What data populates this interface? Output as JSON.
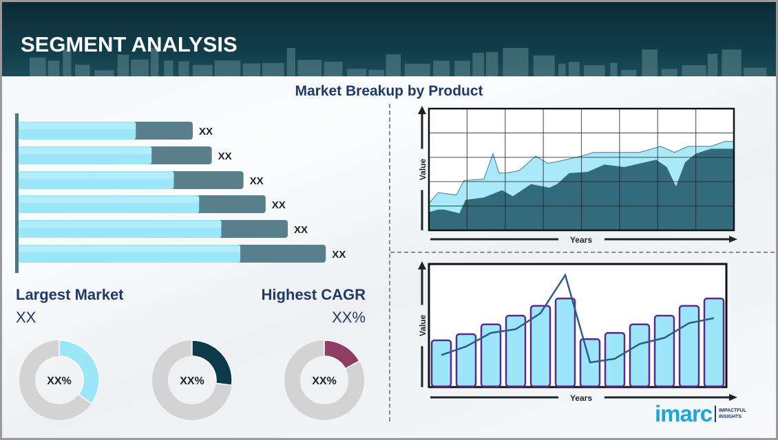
{
  "header": {
    "title": "SEGMENT ANALYSIS"
  },
  "subtitle": "Market Breakup by Product",
  "largest_market": {
    "label": "Largest Market",
    "value": "XX"
  },
  "highest_cagr": {
    "label": "Highest CAGR",
    "value": "XX%"
  },
  "logo": {
    "text": "imarc",
    "tagline_1": "IMPACTFUL",
    "tagline_2": "INSIGHTS"
  },
  "colors": {
    "header": "#0f3744",
    "navy": "#1f3a68",
    "light_blue": "#9be6f8",
    "dark_teal": "#5a7f8c",
    "area_dark": "#2f6578",
    "purple": "#5b2a86",
    "line": "#2f5b8c",
    "donut_gray": "#d3d3d3",
    "donut_dark": "#0d3a4a",
    "donut_maroon": "#8e3e64"
  },
  "chart_data": [
    {
      "type": "bar",
      "orientation": "horizontal",
      "data_labels": [
        "XX",
        "XX",
        "XX",
        "XX",
        "XX",
        "XX"
      ],
      "series": [
        {
          "values": [
            37,
            42,
            49,
            57,
            64,
            70
          ]
        },
        {
          "values": [
            55,
            61,
            71,
            78,
            85,
            97
          ]
        }
      ],
      "xlim": [
        0,
        100
      ]
    },
    {
      "type": "area",
      "xlabel": "Years",
      "ylabel": "Value",
      "ylim": [
        0,
        100
      ],
      "xlim": [
        0,
        100
      ],
      "grid": true,
      "series": [
        {
          "x": [
            0,
            3,
            9,
            11.5,
            18,
            21,
            23,
            25,
            29.5,
            31,
            35,
            39,
            43,
            50,
            54,
            69,
            76,
            80.5,
            85,
            92.5,
            97,
            100
          ],
          "values": [
            22,
            31,
            29,
            41,
            42,
            63,
            47,
            47,
            49,
            52,
            61,
            55,
            57,
            61,
            64,
            64,
            69,
            64,
            69,
            69,
            73,
            73
          ]
        },
        {
          "x": [
            0,
            3,
            5,
            10,
            12,
            18,
            24,
            27.5,
            33.5,
            39.5,
            42,
            46,
            52,
            57.5,
            64,
            74.5,
            78,
            81,
            84,
            87.5,
            92.5,
            100
          ],
          "values": [
            15,
            17,
            17,
            14,
            25,
            27,
            33,
            28,
            38,
            35,
            38,
            47,
            48,
            54,
            52,
            58,
            52,
            36,
            56,
            63,
            67,
            67
          ]
        }
      ]
    },
    {
      "type": "bar",
      "xlabel": "Years",
      "ylabel": "Value",
      "ylim": [
        0,
        100
      ],
      "values": [
        38,
        43,
        51,
        58,
        66,
        72,
        39,
        44,
        51,
        58,
        66,
        72
      ],
      "line": [
        26,
        33,
        44,
        47,
        60,
        91,
        20,
        23,
        35,
        40,
        52,
        56
      ]
    },
    {
      "type": "pie",
      "style": "donut",
      "slices": [
        {
          "label": "XX%",
          "value": 35,
          "color": "#9be6f8"
        },
        {
          "label": "XX%",
          "value": 27,
          "color": "#0d3a4a"
        },
        {
          "label": "XX%",
          "value": 17,
          "color": "#8e3e64"
        }
      ]
    }
  ]
}
